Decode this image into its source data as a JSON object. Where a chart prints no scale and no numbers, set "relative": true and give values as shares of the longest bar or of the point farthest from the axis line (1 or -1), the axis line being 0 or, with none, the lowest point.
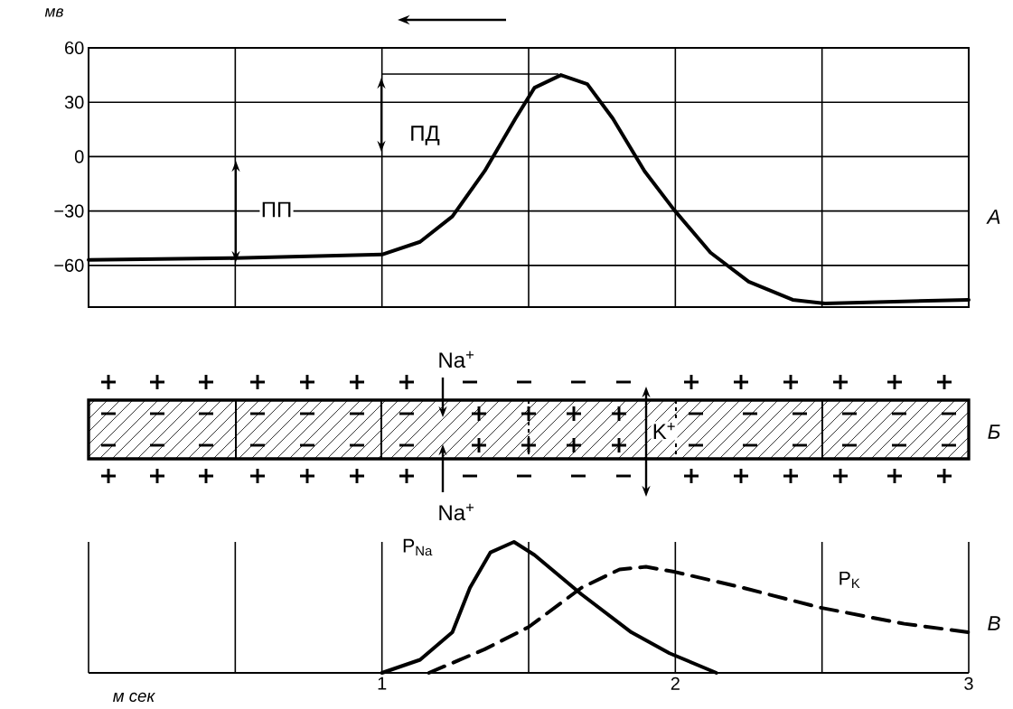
{
  "chart_data": [
    {
      "type": "line",
      "ylabel": "мв",
      "annotations": [
        "ПД",
        "ПП",
        "А"
      ],
      "xlim": [
        0,
        3
      ],
      "xticks": [
        {
          "value": 0,
          "label": null
        },
        {
          "value": 0.5,
          "label": null
        },
        {
          "value": 1,
          "label": null
        },
        {
          "value": 1.5,
          "label": null
        },
        {
          "value": 2,
          "label": null
        },
        {
          "value": 2.5,
          "label": null
        },
        {
          "value": 3,
          "label": null
        }
      ],
      "ylim": [
        -83,
        60
      ],
      "yticks": [
        {
          "value": -60,
          "label": "−60"
        },
        {
          "value": -30,
          "label": "−30"
        },
        0,
        30,
        60
      ],
      "grid": true,
      "tick_labels": "y",
      "line_style": "solid",
      "marker": "none",
      "series": [
        {
          "color": "#000000",
          "x": [
            0,
            0.5,
            1.0,
            1.13,
            1.24,
            1.35,
            1.455,
            1.52,
            1.61,
            1.7,
            1.787,
            1.895,
            1.994,
            2.12,
            2.25,
            2.4,
            2.51,
            3.0
          ],
          "values": [
            -57,
            -56,
            -54,
            -47,
            -33,
            -8,
            21,
            38,
            45,
            40,
            21,
            -8,
            -29,
            -53,
            -69,
            -79,
            -81,
            -79
          ]
        }
      ]
    },
    {
      "type": "other",
      "annotations": [
        "Na$^{+}$",
        "Na$^{+}$",
        "K$^{+}$",
        "Б"
      ]
    },
    {
      "type": "line",
      "xlabel": "м сек",
      "annotations": [
        "В"
      ],
      "relative": true,
      "xlim": [
        0,
        3
      ],
      "xticks": [
        {
          "value": 0,
          "label": null
        },
        {
          "value": 0.5,
          "label": null
        },
        1,
        {
          "value": 1.5,
          "label": null
        },
        2,
        {
          "value": 2.5,
          "label": null
        },
        3
      ],
      "grid": "x",
      "tick_labels": "x",
      "marker": "none",
      "series": [
        {
          "name": "P$_{Na}$",
          "color": "#000000",
          "line_style": "solid",
          "x": [
            1.0,
            1.13,
            1.24,
            1.3,
            1.37,
            1.45,
            1.52,
            1.68,
            1.85,
            1.98,
            2.14
          ],
          "values": [
            0,
            0.1,
            0.31,
            0.65,
            0.92,
            1,
            0.9,
            0.6,
            0.31,
            0.15,
            0
          ]
        },
        {
          "name": "P$_{K}$",
          "color": "#000000",
          "line_style": "dashed",
          "x": [
            1.16,
            1.35,
            1.5,
            1.68,
            1.81,
            1.9,
            2.0,
            2.23,
            2.49,
            2.78,
            3.0
          ],
          "values": [
            0,
            0.18,
            0.35,
            0.65,
            0.79,
            0.81,
            0.77,
            0.65,
            0.5,
            0.375,
            0.31
          ]
        }
      ]
    }
  ]
}
